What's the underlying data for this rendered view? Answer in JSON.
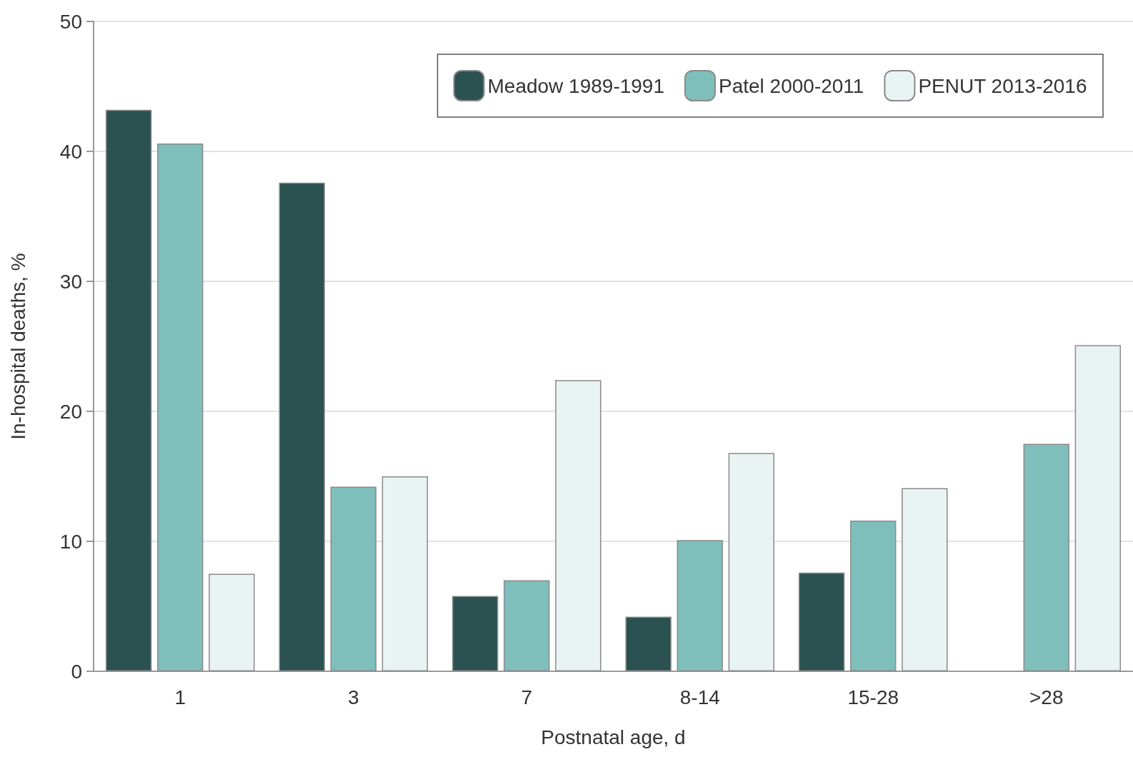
{
  "chart_data": {
    "type": "bar",
    "xlabel": "Postnatal age, d",
    "ylabel": "In-hospital deaths, %",
    "categories": [
      "1",
      "3",
      "7",
      "8-14",
      "15-28",
      ">28"
    ],
    "series": [
      {
        "name": "Meadow 1989-1991",
        "color": "#2b5250",
        "values": [
          43.2,
          37.6,
          5.8,
          4.2,
          7.6,
          null
        ]
      },
      {
        "name": "Patel 2000-2011",
        "color": "#7fbfbb",
        "values": [
          40.6,
          14.2,
          7.0,
          10.1,
          11.6,
          17.5
        ]
      },
      {
        "name": "PENUT 2013-2016",
        "color": "#e9f3f3",
        "values": [
          7.5,
          15.0,
          22.4,
          16.8,
          14.1,
          25.1
        ]
      }
    ],
    "ylim": [
      0,
      50
    ],
    "yticks": [
      0,
      10,
      20,
      30,
      40,
      50
    ],
    "grid": "y",
    "legend": "top right"
  }
}
